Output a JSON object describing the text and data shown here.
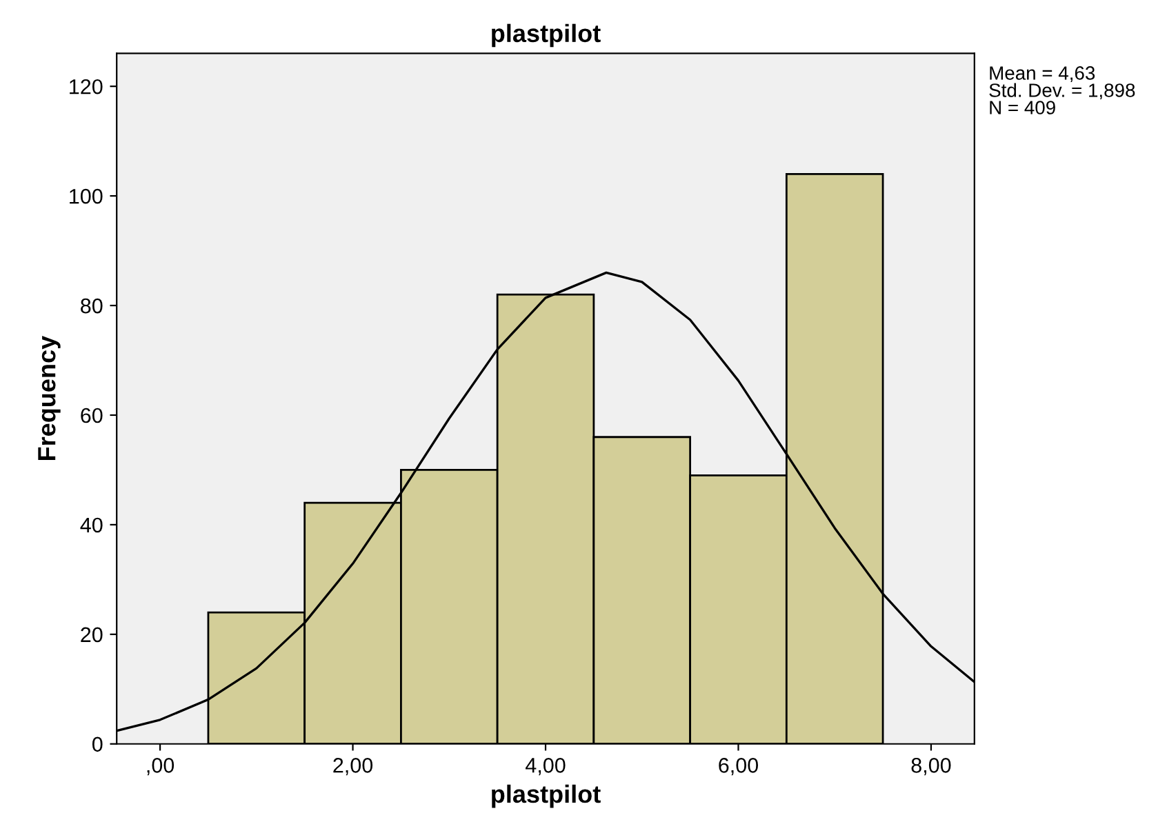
{
  "chart_data": {
    "type": "histogram",
    "title": "plastpilot",
    "xlabel": "plastpilot",
    "ylabel": "Frequency",
    "bins": [
      0.5,
      1.5,
      2.5,
      3.5,
      4.5,
      5.5,
      6.5,
      7.5
    ],
    "series": [
      {
        "color": "#d3ce98",
        "values": [
          24,
          44,
          50,
          82,
          56,
          49,
          104
        ]
      },
      {
        "type": "line",
        "color": "#000000",
        "x": [
          -0.45,
          0,
          0.5,
          1,
          1.5,
          2,
          2.5,
          3,
          3.5,
          4,
          4.63,
          5,
          5.5,
          6,
          6.5,
          7,
          7.5,
          8,
          8.45
        ],
        "values": [
          2.4,
          4.4,
          8.1,
          13.8,
          22.1,
          32.9,
          45.8,
          59.4,
          72.0,
          81.4,
          86.0,
          84.3,
          77.4,
          66.3,
          52.9,
          39.4,
          27.4,
          17.8,
          11.3
        ]
      }
    ],
    "xlim": [
      -0.45,
      8.45
    ],
    "ylim": [
      0,
      126
    ],
    "xticks": [
      {
        "value": 0,
        "label": ",00"
      },
      {
        "value": 2,
        "label": "2,00"
      },
      {
        "value": 4,
        "label": "4,00"
      },
      {
        "value": 6,
        "label": "6,00"
      },
      {
        "value": 8,
        "label": "8,00"
      }
    ],
    "yticks": [
      0,
      20,
      40,
      60,
      80,
      100,
      120
    ],
    "grid": false,
    "legend": false,
    "annotations": [
      "Mean = 4,63",
      "Std. Dev. = 1,898",
      "N = 409"
    ]
  }
}
